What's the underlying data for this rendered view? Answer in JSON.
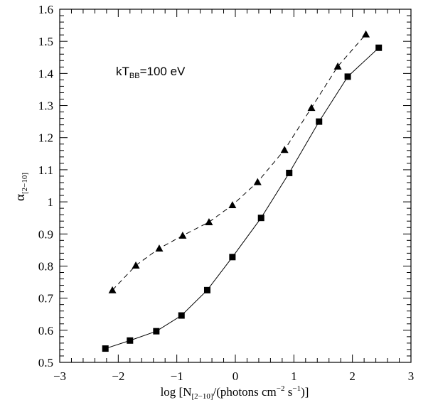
{
  "chart_data": {
    "type": "line",
    "xlim": [
      -3,
      3
    ],
    "ylim": [
      0.5,
      1.6
    ],
    "x_ticks": [
      -3,
      -2,
      -1,
      0,
      1,
      2,
      3
    ],
    "x_tick_labels": [
      "−3",
      "−2",
      "−1",
      "0",
      "1",
      "2",
      "3"
    ],
    "y_ticks": [
      0.5,
      0.6,
      0.7,
      0.8,
      0.9,
      1.0,
      1.1,
      1.2,
      1.3,
      1.4,
      1.5,
      1.6
    ],
    "y_tick_labels": [
      "0.5",
      "0.6",
      "0.7",
      "0.8",
      "0.9",
      "1",
      "1.1",
      "1.2",
      "1.3",
      "1.4",
      "1.5",
      "1.6"
    ],
    "grid": false,
    "xlabel": {
      "prefix": "log [N",
      "sub": "[2−10]",
      "middle": "/(photons cm",
      "sup1": "−2",
      "middle2": " s",
      "sup2": "−1",
      "suffix": ")]"
    },
    "ylabel": {
      "symbol": "α",
      "sub": "[2−10]"
    },
    "annotation": {
      "main": "kT",
      "sub": "BB",
      "rest": "=100 eV"
    },
    "series": [
      {
        "marker": "square",
        "line_style": "solid",
        "x": [
          -2.22,
          -1.8,
          -1.35,
          -0.92,
          -0.48,
          -0.05,
          0.44,
          0.92,
          1.43,
          1.92,
          2.45
        ],
        "y": [
          0.543,
          0.568,
          0.597,
          0.646,
          0.725,
          0.828,
          0.95,
          1.09,
          1.25,
          1.39,
          1.48
        ]
      },
      {
        "marker": "triangle",
        "line_style": "dashed",
        "x": [
          -2.1,
          -1.7,
          -1.3,
          -0.9,
          -0.45,
          -0.05,
          0.38,
          0.84,
          1.3,
          1.75,
          2.23
        ],
        "y": [
          0.725,
          0.802,
          0.855,
          0.895,
          0.937,
          0.99,
          1.062,
          1.162,
          1.293,
          1.422,
          1.522
        ]
      }
    ]
  }
}
